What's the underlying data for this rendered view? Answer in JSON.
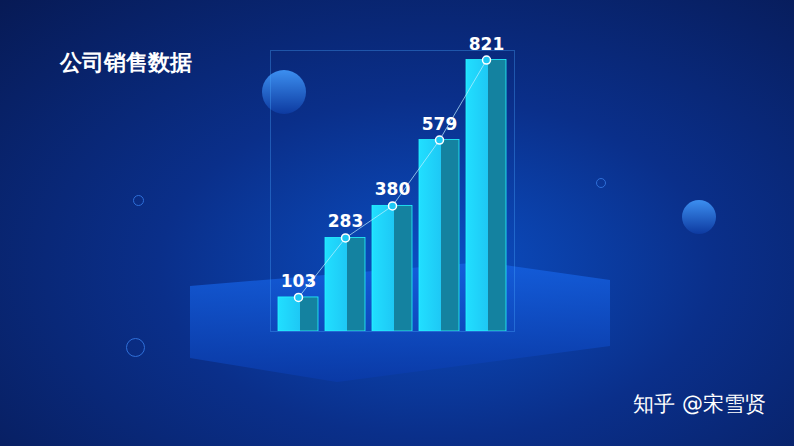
{
  "chart_data": {
    "type": "bar",
    "title": "公司销售数据",
    "annotation": "知乎 @宋雪贤",
    "categories": [
      null,
      null,
      null,
      null,
      null
    ],
    "values": [
      103,
      283,
      380,
      579,
      821
    ],
    "color": "#1ec8f5",
    "ylim": [
      0,
      850
    ],
    "data_labels": true,
    "tick_labels": false,
    "grid": false
  }
}
